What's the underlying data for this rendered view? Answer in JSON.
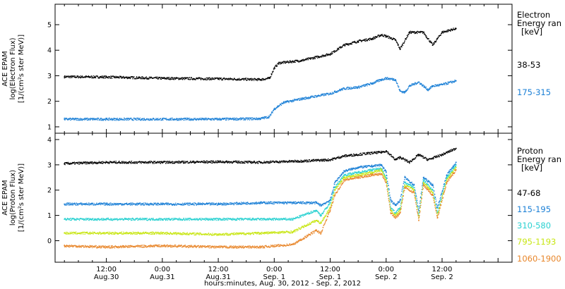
{
  "chart_data": [
    {
      "type": "scatter",
      "ylabel": [
        "ACE EPAM",
        "log(Electron Flux)",
        "[1/(cm²s ster MeV)]"
      ],
      "ylim": [
        0.75,
        5.8
      ],
      "yticks": [
        1,
        2,
        3,
        4,
        5
      ],
      "legend_title": [
        "Electron",
        "Energy ran",
        "[keV]"
      ],
      "legend_placement": "right",
      "series": [
        {
          "name": "38-53",
          "color": "#000000",
          "points": [
            [
              -9,
              2.96
            ],
            [
              0,
              2.95
            ],
            [
              12,
              2.9
            ],
            [
              24,
              2.88
            ],
            [
              33,
              2.85
            ],
            [
              35,
              2.9
            ],
            [
              36,
              3.3
            ],
            [
              37,
              3.5
            ],
            [
              42,
              3.6
            ],
            [
              48,
              3.85
            ],
            [
              51,
              4.2
            ],
            [
              54,
              4.35
            ],
            [
              57,
              4.45
            ],
            [
              59,
              4.6
            ],
            [
              60,
              4.55
            ],
            [
              62,
              4.4
            ],
            [
              63,
              4.05
            ],
            [
              65,
              4.7
            ],
            [
              68,
              4.7
            ],
            [
              70,
              4.2
            ],
            [
              72,
              4.7
            ],
            [
              75,
              4.85
            ]
          ]
        },
        {
          "name": "175-315",
          "color": "#1a7fd6",
          "points": [
            [
              -9,
              1.3
            ],
            [
              0,
              1.3
            ],
            [
              12,
              1.3
            ],
            [
              24,
              1.3
            ],
            [
              33,
              1.32
            ],
            [
              35,
              1.4
            ],
            [
              36,
              1.7
            ],
            [
              38,
              1.95
            ],
            [
              42,
              2.1
            ],
            [
              48,
              2.3
            ],
            [
              51,
              2.5
            ],
            [
              54,
              2.55
            ],
            [
              57,
              2.7
            ],
            [
              59,
              2.85
            ],
            [
              60,
              2.9
            ],
            [
              62,
              2.85
            ],
            [
              63,
              2.4
            ],
            [
              64,
              2.35
            ],
            [
              65,
              2.6
            ],
            [
              67,
              2.75
            ],
            [
              69,
              2.45
            ],
            [
              70,
              2.6
            ],
            [
              72,
              2.65
            ],
            [
              75,
              2.8
            ]
          ]
        }
      ]
    },
    {
      "type": "scatter",
      "ylabel": [
        "ACE EPAM",
        "log(Proton Flux)",
        "[1/(cm²s ster MeV)]"
      ],
      "ylim": [
        -0.85,
        4.25
      ],
      "yticks": [
        0,
        1,
        2,
        3,
        4
      ],
      "legend_title": [
        "Proton",
        "Energy ran",
        "[keV]"
      ],
      "legend_placement": "right",
      "series": [
        {
          "name": "47-68",
          "color": "#000000",
          "points": [
            [
              -9,
              3.05
            ],
            [
              0,
              3.1
            ],
            [
              12,
              3.1
            ],
            [
              24,
              3.12
            ],
            [
              33,
              3.1
            ],
            [
              42,
              3.15
            ],
            [
              48,
              3.2
            ],
            [
              51,
              3.35
            ],
            [
              56,
              3.45
            ],
            [
              59,
              3.5
            ],
            [
              60,
              3.55
            ],
            [
              62,
              3.2
            ],
            [
              63,
              3.3
            ],
            [
              65,
              3.1
            ],
            [
              67,
              3.4
            ],
            [
              69,
              3.2
            ],
            [
              72,
              3.4
            ],
            [
              75,
              3.65
            ]
          ]
        },
        {
          "name": "115-195",
          "color": "#1a7fd6",
          "points": [
            [
              -9,
              1.45
            ],
            [
              0,
              1.45
            ],
            [
              12,
              1.45
            ],
            [
              24,
              1.45
            ],
            [
              33,
              1.5
            ],
            [
              40,
              1.5
            ],
            [
              45,
              1.5
            ],
            [
              46,
              1.4
            ],
            [
              48,
              1.6
            ],
            [
              49,
              2.3
            ],
            [
              51,
              2.75
            ],
            [
              54,
              2.9
            ],
            [
              57,
              2.95
            ],
            [
              59,
              3.0
            ],
            [
              60,
              2.7
            ],
            [
              61,
              1.6
            ],
            [
              62,
              1.4
            ],
            [
              63,
              1.6
            ],
            [
              64,
              2.5
            ],
            [
              66,
              2.2
            ],
            [
              67,
              1.2
            ],
            [
              68,
              2.5
            ],
            [
              70,
              2.2
            ],
            [
              71,
              1.3
            ],
            [
              73,
              2.6
            ],
            [
              75,
              3.1
            ]
          ]
        },
        {
          "name": "310-580",
          "color": "#2ad1d1",
          "points": [
            [
              -9,
              0.85
            ],
            [
              0,
              0.85
            ],
            [
              12,
              0.85
            ],
            [
              24,
              0.85
            ],
            [
              33,
              0.85
            ],
            [
              40,
              0.85
            ],
            [
              45,
              1.2
            ],
            [
              46,
              1.0
            ],
            [
              48,
              1.5
            ],
            [
              49,
              2.1
            ],
            [
              51,
              2.6
            ],
            [
              54,
              2.7
            ],
            [
              57,
              2.8
            ],
            [
              59,
              2.85
            ],
            [
              60,
              2.5
            ],
            [
              61,
              1.3
            ],
            [
              62,
              1.1
            ],
            [
              63,
              1.3
            ],
            [
              64,
              2.3
            ],
            [
              66,
              2.1
            ],
            [
              67,
              1.0
            ],
            [
              68,
              2.4
            ],
            [
              70,
              2.0
            ],
            [
              71,
              1.1
            ],
            [
              73,
              2.5
            ],
            [
              75,
              3.0
            ]
          ]
        },
        {
          "name": "795-1193",
          "color": "#c8e614",
          "points": [
            [
              -9,
              0.3
            ],
            [
              0,
              0.3
            ],
            [
              12,
              0.3
            ],
            [
              24,
              0.25
            ],
            [
              33,
              0.3
            ],
            [
              40,
              0.35
            ],
            [
              45,
              0.8
            ],
            [
              46,
              0.7
            ],
            [
              48,
              1.3
            ],
            [
              49,
              2.0
            ],
            [
              51,
              2.5
            ],
            [
              54,
              2.6
            ],
            [
              57,
              2.7
            ],
            [
              59,
              2.8
            ],
            [
              60,
              2.4
            ],
            [
              61,
              1.2
            ],
            [
              62,
              1.0
            ],
            [
              63,
              1.2
            ],
            [
              64,
              2.2
            ],
            [
              66,
              2.0
            ],
            [
              67,
              0.9
            ],
            [
              68,
              2.3
            ],
            [
              70,
              1.9
            ],
            [
              71,
              1.0
            ],
            [
              73,
              2.4
            ],
            [
              75,
              2.9
            ]
          ]
        },
        {
          "name": "1060-1900",
          "color": "#e8862a",
          "points": [
            [
              -9,
              -0.2
            ],
            [
              0,
              -0.25
            ],
            [
              12,
              -0.2
            ],
            [
              24,
              -0.25
            ],
            [
              33,
              -0.25
            ],
            [
              40,
              -0.15
            ],
            [
              45,
              0.4
            ],
            [
              46,
              0.3
            ],
            [
              48,
              1.2
            ],
            [
              49,
              1.8
            ],
            [
              51,
              2.4
            ],
            [
              54,
              2.5
            ],
            [
              57,
              2.6
            ],
            [
              59,
              2.65
            ],
            [
              60,
              2.3
            ],
            [
              61,
              1.1
            ],
            [
              62,
              0.9
            ],
            [
              63,
              1.1
            ],
            [
              64,
              2.1
            ],
            [
              66,
              1.9
            ],
            [
              67,
              0.8
            ],
            [
              68,
              2.2
            ],
            [
              70,
              1.8
            ],
            [
              71,
              0.9
            ],
            [
              73,
              2.3
            ],
            [
              75,
              2.8
            ]
          ]
        }
      ]
    }
  ],
  "x_axis": {
    "xlim": [
      -11,
      87
    ],
    "ticks": [
      {
        "x": 0,
        "line1": "12:00",
        "line2": "Aug.30"
      },
      {
        "x": 12,
        "line1": "0:00",
        "line2": "Aug.31"
      },
      {
        "x": 24,
        "line1": "12:00",
        "line2": "Aug.31"
      },
      {
        "x": 36,
        "line1": "0:00",
        "line2": "Sep. 1"
      },
      {
        "x": 48,
        "line1": "12:00",
        "line2": "Sep. 1"
      },
      {
        "x": 60,
        "line1": "0:00",
        "line2": "Sep. 2"
      },
      {
        "x": 72,
        "line1": "12:00",
        "line2": "Sep. 2"
      }
    ],
    "label": "hours:minutes, Aug. 30, 2012 - Sep. 2, 2012"
  }
}
